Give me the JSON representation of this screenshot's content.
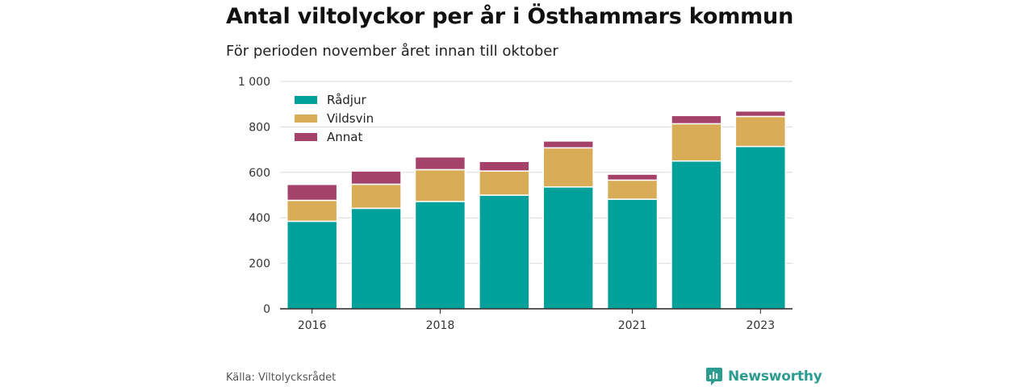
{
  "title": "Antal viltolyckor per år i Östhammars kommun",
  "subtitle": "För perioden november året innan till oktober",
  "source": "Källa: Viltolycksrådet",
  "brand": {
    "name": "Newsworthy",
    "icon": "newsworthy-logo-icon"
  },
  "chart_data": {
    "type": "bar",
    "stacked": true,
    "categories": [
      "2016",
      "2017",
      "2018",
      "2019",
      "2020",
      "2021",
      "2022",
      "2023"
    ],
    "x_tick_labels": [
      "2016",
      "",
      "2018",
      "",
      "",
      "2021",
      "",
      "2023"
    ],
    "series": [
      {
        "name": "Rådjur",
        "color": "#00a19a",
        "values": [
          385,
          442,
          472,
          500,
          536,
          482,
          650,
          714
        ]
      },
      {
        "name": "Vildsvin",
        "color": "#d9ac58",
        "values": [
          92,
          106,
          140,
          106,
          172,
          84,
          164,
          132
        ]
      },
      {
        "name": "Annat",
        "color": "#a4426a",
        "values": [
          70,
          58,
          56,
          42,
          30,
          26,
          36,
          24
        ]
      }
    ],
    "ylim": [
      0,
      1000
    ],
    "yticks": [
      0,
      200,
      400,
      600,
      800,
      1000
    ],
    "ytick_labels": [
      "0",
      "200",
      "400",
      "600",
      "800",
      "1 000"
    ],
    "grid": true,
    "legend_position": "top-left"
  }
}
